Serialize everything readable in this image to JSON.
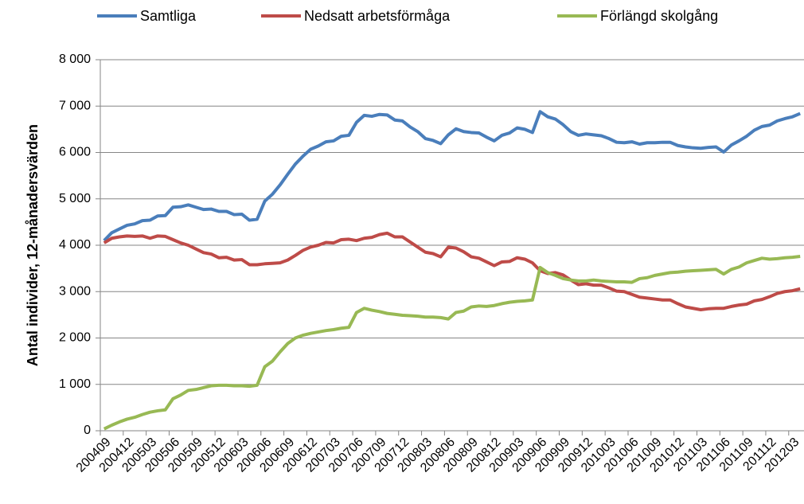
{
  "chart_data": {
    "type": "line",
    "y_label": "Antal individer, 12-månadersvärden",
    "categories": [
      "200409",
      null,
      null,
      "200412",
      null,
      null,
      "200503",
      null,
      null,
      "200506",
      null,
      null,
      "200509",
      null,
      null,
      "200512",
      null,
      null,
      "200603",
      null,
      null,
      "200606",
      null,
      null,
      "200609",
      null,
      null,
      "200612",
      null,
      null,
      "200703",
      null,
      null,
      "200706",
      null,
      null,
      "200709",
      null,
      null,
      "200712",
      null,
      null,
      "200803",
      null,
      null,
      "200806",
      null,
      null,
      "200809",
      null,
      null,
      "200812",
      null,
      null,
      "200903",
      null,
      null,
      "200906",
      null,
      null,
      "200909",
      null,
      null,
      "200912",
      null,
      null,
      "201003",
      null,
      null,
      "201006",
      null,
      null,
      "201009",
      null,
      null,
      "201012",
      null,
      null,
      "201103",
      null,
      null,
      "201106",
      null,
      null,
      "201109",
      null,
      null,
      "201112",
      null,
      null,
      "201203",
      null
    ],
    "series": [
      {
        "name": "Samtliga",
        "color": "#4a7ebb",
        "values": [
          4100,
          4270,
          4350,
          4430,
          4460,
          4530,
          4540,
          4630,
          4640,
          4820,
          4830,
          4870,
          4820,
          4770,
          4780,
          4730,
          4730,
          4660,
          4670,
          4540,
          4560,
          4950,
          5100,
          5300,
          5530,
          5750,
          5920,
          6070,
          6140,
          6230,
          6250,
          6350,
          6370,
          6650,
          6800,
          6780,
          6820,
          6810,
          6700,
          6680,
          6550,
          6450,
          6300,
          6260,
          6190,
          6380,
          6510,
          6450,
          6430,
          6420,
          6330,
          6250,
          6370,
          6420,
          6530,
          6500,
          6430,
          6880,
          6770,
          6720,
          6600,
          6450,
          6370,
          6400,
          6380,
          6360,
          6300,
          6220,
          6210,
          6230,
          6180,
          6210,
          6210,
          6220,
          6220,
          6150,
          6120,
          6100,
          6090,
          6110,
          6120,
          6010,
          6160,
          6250,
          6350,
          6480,
          6560,
          6590,
          6680,
          6730,
          6770,
          6840
        ]
      },
      {
        "name": "Nedsatt arbetsförmåga",
        "color": "#be4b48",
        "values": [
          4050,
          4150,
          4180,
          4200,
          4190,
          4200,
          4150,
          4200,
          4190,
          4120,
          4050,
          4000,
          3920,
          3840,
          3810,
          3730,
          3740,
          3680,
          3690,
          3580,
          3580,
          3600,
          3610,
          3620,
          3680,
          3780,
          3890,
          3960,
          4000,
          4060,
          4050,
          4120,
          4130,
          4100,
          4150,
          4170,
          4230,
          4260,
          4180,
          4180,
          4070,
          3960,
          3850,
          3820,
          3750,
          3960,
          3940,
          3860,
          3750,
          3720,
          3640,
          3560,
          3640,
          3650,
          3730,
          3700,
          3620,
          3450,
          3390,
          3410,
          3360,
          3250,
          3150,
          3170,
          3140,
          3140,
          3080,
          3010,
          3000,
          2940,
          2880,
          2860,
          2840,
          2820,
          2820,
          2740,
          2670,
          2640,
          2610,
          2630,
          2640,
          2640,
          2680,
          2710,
          2730,
          2800,
          2830,
          2890,
          2960,
          3000,
          3020,
          3060
        ]
      },
      {
        "name": "Förlängd skolgång",
        "color": "#98b954",
        "values": [
          40,
          120,
          190,
          250,
          290,
          350,
          400,
          430,
          450,
          690,
          770,
          870,
          890,
          930,
          970,
          980,
          980,
          970,
          970,
          960,
          980,
          1380,
          1500,
          1700,
          1880,
          2000,
          2060,
          2100,
          2130,
          2160,
          2180,
          2210,
          2230,
          2550,
          2640,
          2600,
          2570,
          2530,
          2510,
          2490,
          2480,
          2470,
          2450,
          2450,
          2440,
          2410,
          2550,
          2580,
          2670,
          2690,
          2680,
          2700,
          2740,
          2770,
          2790,
          2800,
          2820,
          3520,
          3410,
          3350,
          3280,
          3250,
          3230,
          3230,
          3250,
          3230,
          3220,
          3210,
          3210,
          3200,
          3280,
          3300,
          3350,
          3380,
          3410,
          3420,
          3440,
          3450,
          3460,
          3470,
          3480,
          3380,
          3480,
          3530,
          3620,
          3670,
          3720,
          3700,
          3710,
          3730,
          3740,
          3760
        ]
      }
    ],
    "ylim": [
      0,
      8000
    ],
    "yticks": [
      0,
      {
        "value": 1000,
        "label": "1 000"
      },
      {
        "value": 2000,
        "label": "2 000"
      },
      {
        "value": 3000,
        "label": "3 000"
      },
      {
        "value": 4000,
        "label": "4 000"
      },
      {
        "value": 5000,
        "label": "5 000"
      },
      {
        "value": 6000,
        "label": "6 000"
      },
      {
        "value": 7000,
        "label": "7 000"
      },
      {
        "value": 8000,
        "label": "8 000"
      }
    ],
    "grid": true
  }
}
